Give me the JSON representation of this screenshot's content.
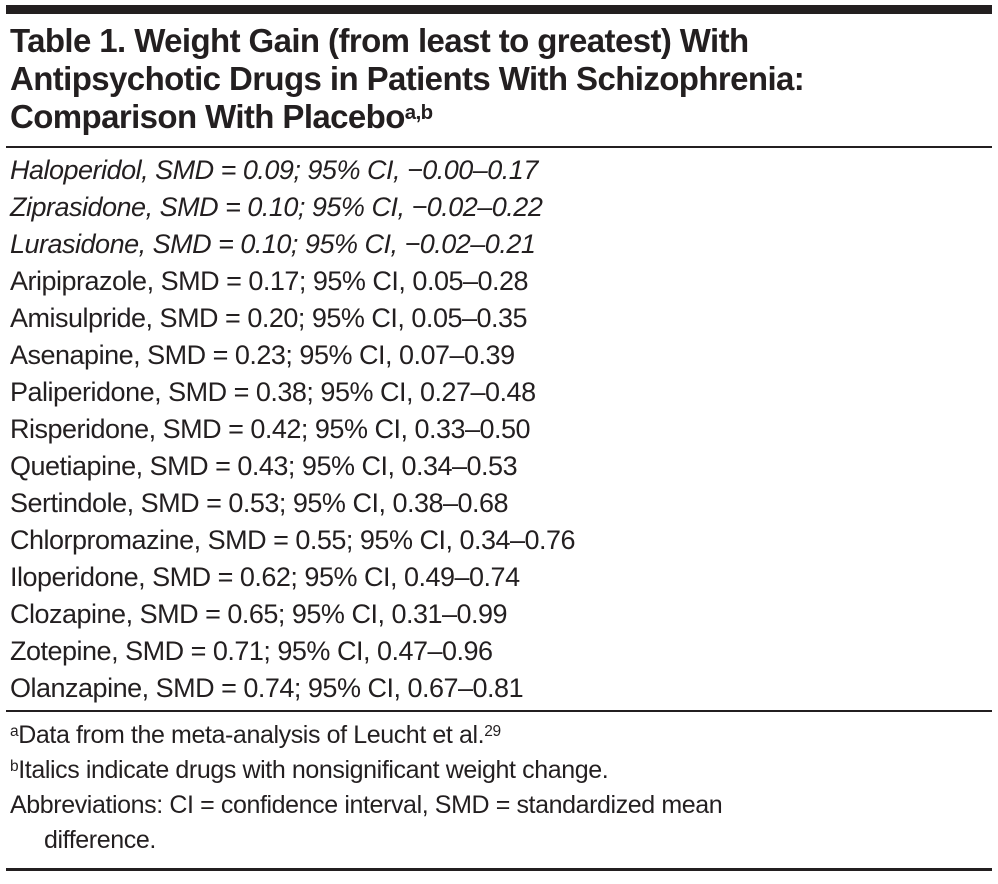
{
  "page": {
    "background_color": "#ffffff",
    "text_color": "#231f20",
    "rule_color": "#231f20"
  },
  "table": {
    "title": {
      "lines": [
        "Table 1. Weight Gain (from least to greatest) With",
        "Antipsychotic Drugs in Patients With Schizophrenia:",
        "Comparison With Placebo"
      ],
      "superscript": "a,b"
    },
    "rows": [
      {
        "drug": "Haloperidol",
        "smd": "0.09",
        "ci": "−0.00–0.17",
        "italic": true,
        "text": "Haloperidol, SMD = 0.09; 95% CI, −0.00–0.17"
      },
      {
        "drug": "Ziprasidone",
        "smd": "0.10",
        "ci": "−0.02–0.22",
        "italic": true,
        "text": "Ziprasidone, SMD = 0.10; 95% CI, −0.02–0.22"
      },
      {
        "drug": "Lurasidone",
        "smd": "0.10",
        "ci": "−0.02–0.21",
        "italic": true,
        "text": "Lurasidone, SMD = 0.10; 95% CI, −0.02–0.21"
      },
      {
        "drug": "Aripiprazole",
        "smd": "0.17",
        "ci": "0.05–0.28",
        "italic": false,
        "text": "Aripiprazole, SMD = 0.17; 95% CI, 0.05–0.28"
      },
      {
        "drug": "Amisulpride",
        "smd": "0.20",
        "ci": "0.05–0.35",
        "italic": false,
        "text": "Amisulpride, SMD = 0.20; 95% CI, 0.05–0.35"
      },
      {
        "drug": "Asenapine",
        "smd": "0.23",
        "ci": "0.07–0.39",
        "italic": false,
        "text": "Asenapine, SMD = 0.23; 95% CI, 0.07–0.39"
      },
      {
        "drug": "Paliperidone",
        "smd": "0.38",
        "ci": "0.27–0.48",
        "italic": false,
        "text": "Paliperidone, SMD = 0.38; 95% CI, 0.27–0.48"
      },
      {
        "drug": "Risperidone",
        "smd": "0.42",
        "ci": "0.33–0.50",
        "italic": false,
        "text": "Risperidone, SMD = 0.42; 95% CI, 0.33–0.50"
      },
      {
        "drug": "Quetiapine",
        "smd": "0.43",
        "ci": "0.34–0.53",
        "italic": false,
        "text": "Quetiapine, SMD = 0.43; 95% CI, 0.34–0.53"
      },
      {
        "drug": "Sertindole",
        "smd": "0.53",
        "ci": "0.38–0.68",
        "italic": false,
        "text": "Sertindole, SMD = 0.53; 95% CI, 0.38–0.68"
      },
      {
        "drug": "Chlorpromazine",
        "smd": "0.55",
        "ci": "0.34–0.76",
        "italic": false,
        "text": "Chlorpromazine, SMD = 0.55; 95% CI, 0.34–0.76"
      },
      {
        "drug": "Iloperidone",
        "smd": "0.62",
        "ci": "0.49–0.74",
        "italic": false,
        "text": "Iloperidone, SMD = 0.62; 95% CI, 0.49–0.74"
      },
      {
        "drug": "Clozapine",
        "smd": "0.65",
        "ci": "0.31–0.99",
        "italic": false,
        "text": "Clozapine, SMD = 0.65; 95% CI, 0.31–0.99"
      },
      {
        "drug": "Zotepine",
        "smd": "0.71",
        "ci": "0.47–0.96",
        "italic": false,
        "text": "Zotepine, SMD = 0.71; 95% CI, 0.47–0.96"
      },
      {
        "drug": "Olanzapine",
        "smd": "0.74",
        "ci": "0.67–0.81",
        "italic": false,
        "text": "Olanzapine, SMD = 0.74; 95% CI, 0.67–0.81"
      }
    ],
    "footnotes": [
      {
        "marker": "a",
        "text": "Data from the meta-analysis of Leucht et al.",
        "trailing_superscript": "29"
      },
      {
        "marker": "b",
        "text": "Italics indicate drugs with nonsignificant weight change."
      },
      {
        "marker": "",
        "text": "Abbreviations: CI = confidence interval, SMD = standardized mean",
        "text_line2": "difference."
      }
    ]
  }
}
